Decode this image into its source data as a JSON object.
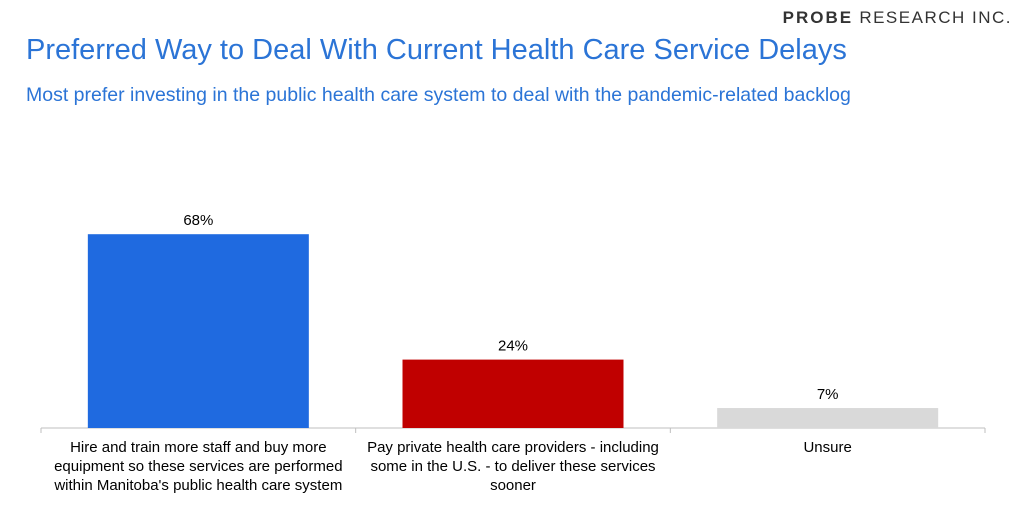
{
  "header": {
    "brand_bold": "PROBE",
    "brand_rest": "RESEARCH INC.",
    "title": "Preferred Way to Deal With Current Health Care Service Delays",
    "subtitle": "Most prefer investing in the public health care system to deal with the pandemic-related backlog"
  },
  "chart_data": {
    "type": "bar",
    "categories": [
      "Hire and train more staff and buy more equipment so these services are performed within Manitoba's public health care system",
      "Pay private health care providers - including some in the U.S. - to deliver these services sooner",
      "Unsure"
    ],
    "values": [
      68,
      24,
      7
    ],
    "data_labels": [
      "68%",
      "24%",
      "7%"
    ],
    "colors": [
      "#1f6ae0",
      "#c00000",
      "#d9d9d9"
    ],
    "unit": "%",
    "ylim": [
      0,
      100
    ],
    "grid": false,
    "legend": "none",
    "title": "Preferred Way to Deal With Current Health Care Service Delays",
    "xlabel": "",
    "ylabel": ""
  }
}
